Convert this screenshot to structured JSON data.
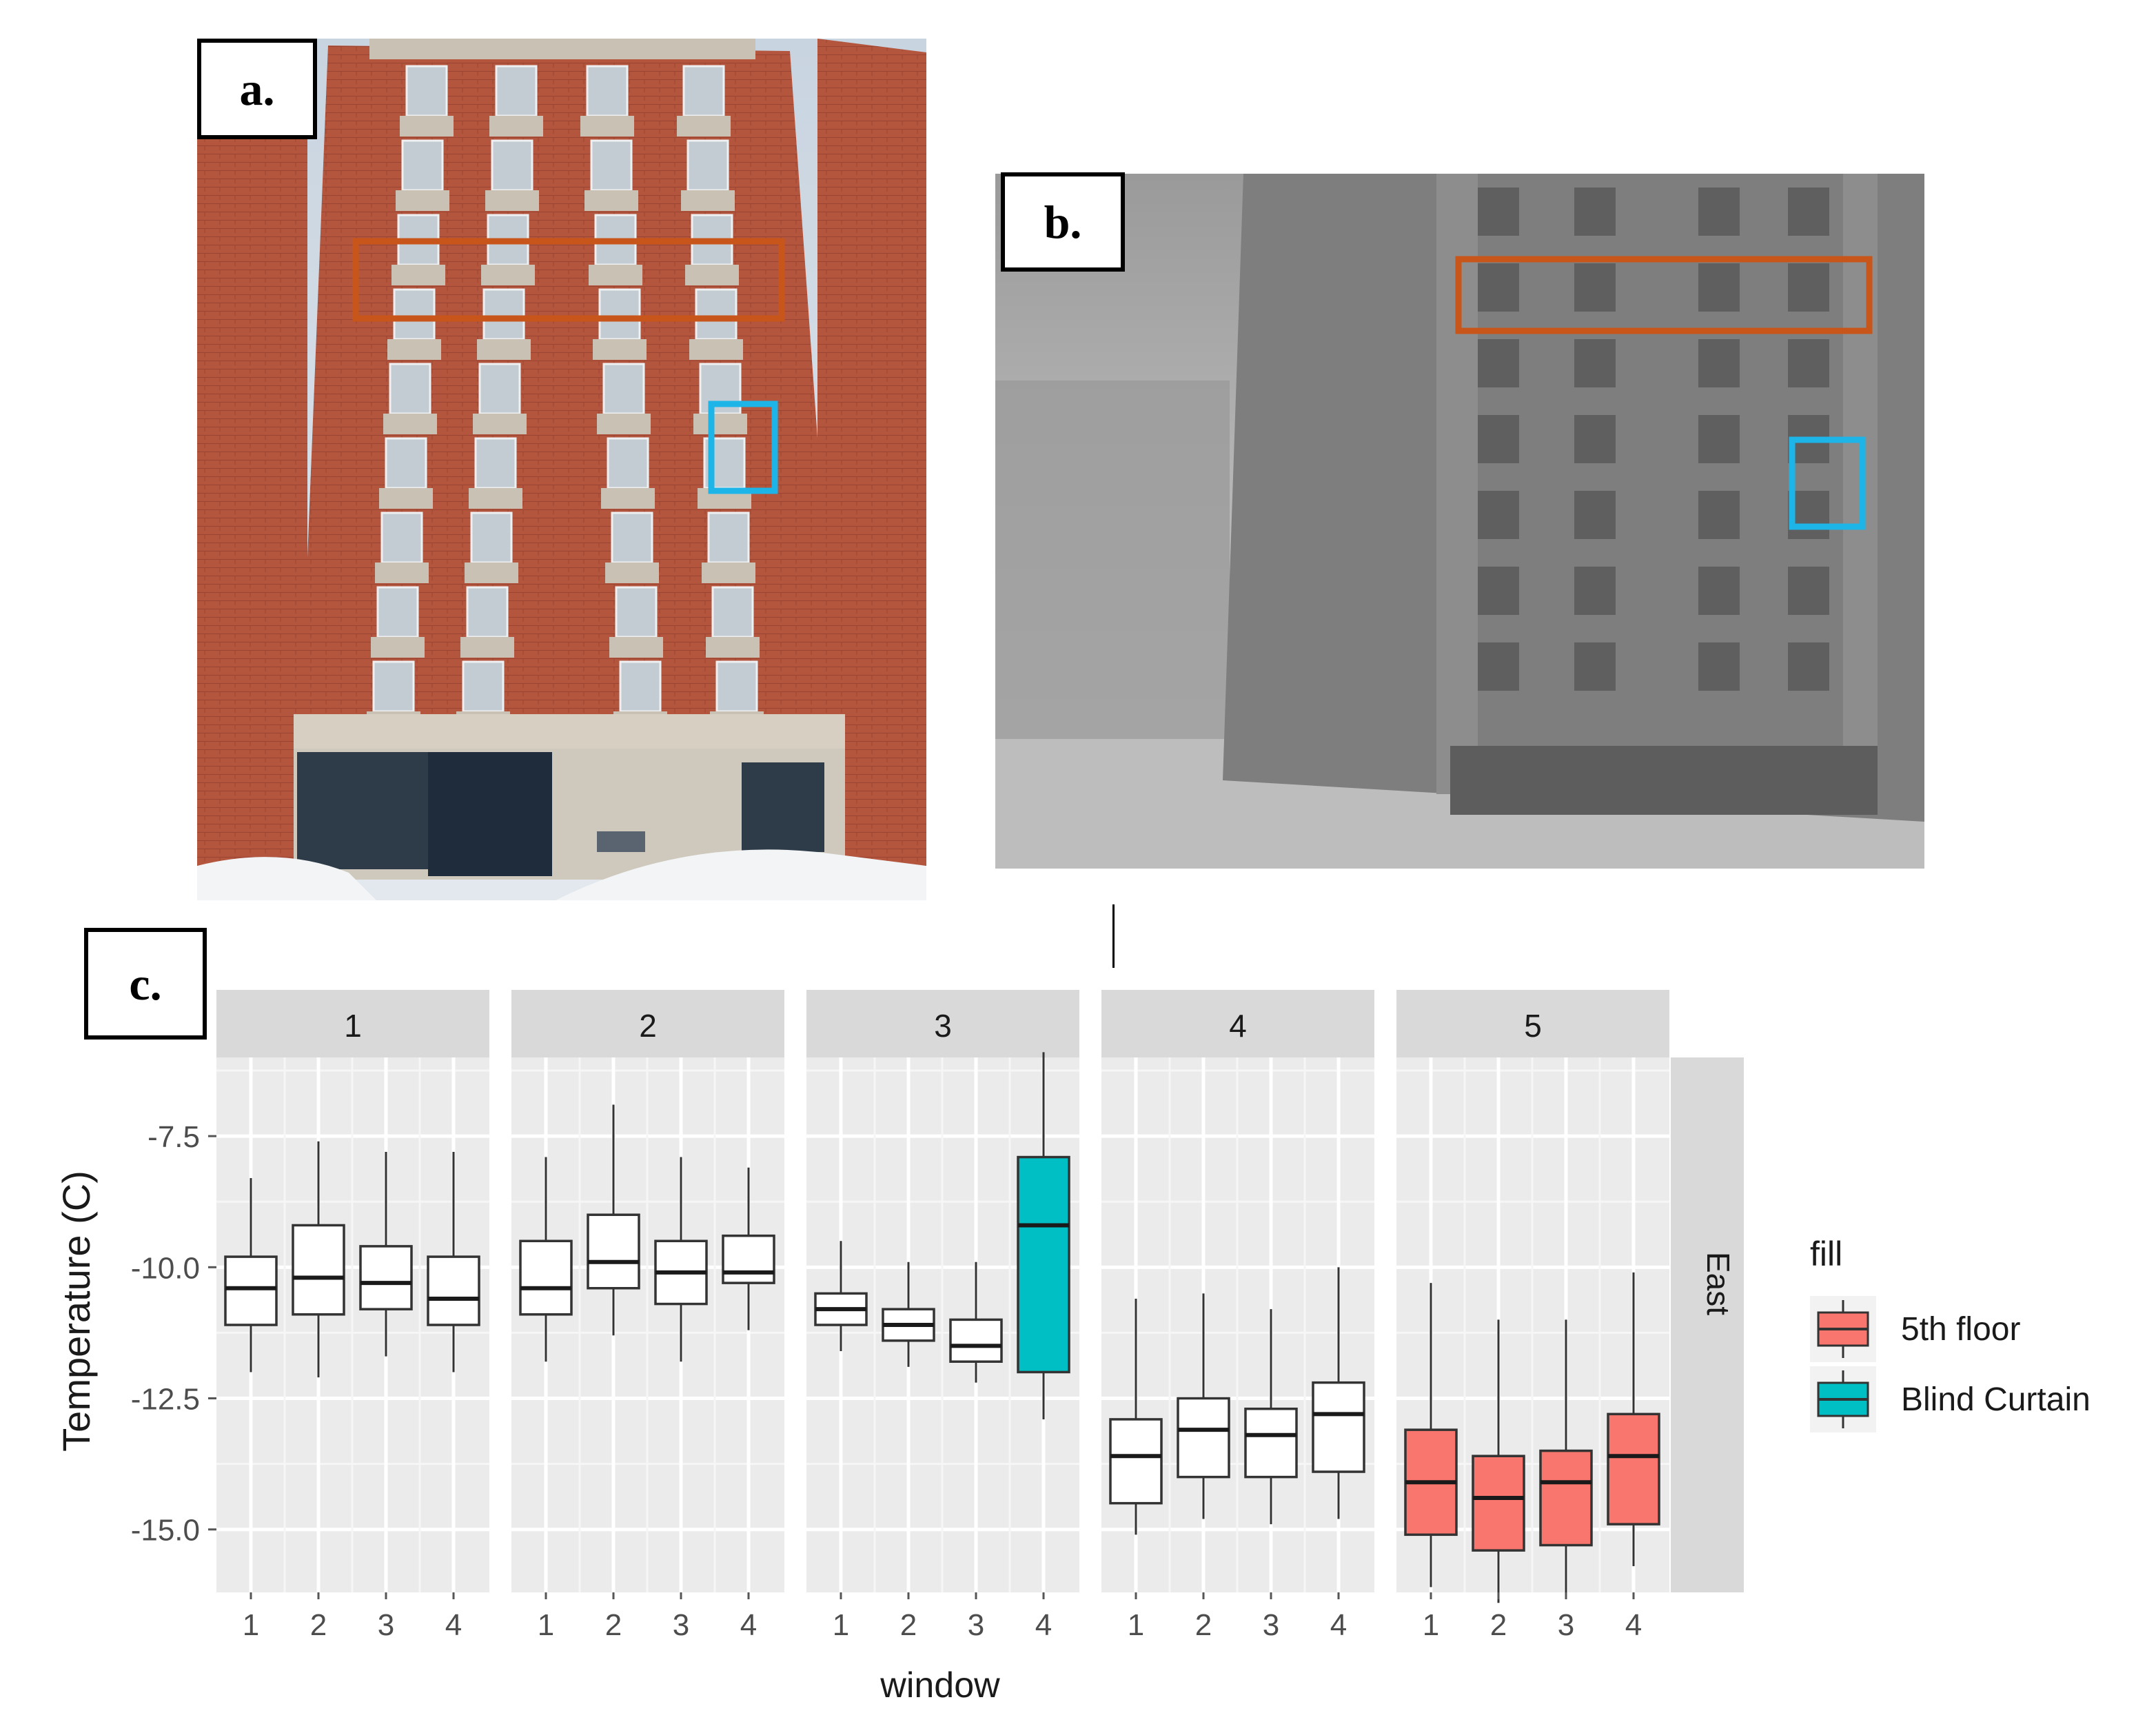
{
  "panels": {
    "a": {
      "label": "a."
    },
    "b": {
      "label": "b."
    },
    "c": {
      "label": "c."
    }
  },
  "colors": {
    "orange_box": "#c8561a",
    "blue_box": "#1db4e8",
    "fifth_floor": "#f8766d",
    "blind_curtain": "#00bfc4",
    "plain": "#ffffff",
    "panel_bg": "#ebebeb",
    "strip_bg": "#d9d9d9"
  },
  "chart_data": {
    "type": "boxplot",
    "xlabel": "window",
    "ylabel": "Temperature (C)",
    "ylim": [
      -16.2,
      -6.0
    ],
    "yticks": [
      -7.5,
      -10.0,
      -12.5,
      -15.0
    ],
    "facet_row_label": "East",
    "legend": {
      "title": "fill",
      "placement": "right",
      "entries": [
        {
          "name": "5th floor",
          "color": "#f8766d"
        },
        {
          "name": "Blind Curtain",
          "color": "#00bfc4"
        }
      ]
    },
    "facets": [
      {
        "label": "1",
        "windows": [
          {
            "x": "1",
            "min": -12.0,
            "q1": -11.1,
            "median": -10.4,
            "q3": -9.8,
            "max": -8.3,
            "fill": "plain"
          },
          {
            "x": "2",
            "min": -12.1,
            "q1": -10.9,
            "median": -10.2,
            "q3": -9.2,
            "max": -7.6,
            "fill": "plain"
          },
          {
            "x": "3",
            "min": -11.7,
            "q1": -10.8,
            "median": -10.3,
            "q3": -9.6,
            "max": -7.8,
            "fill": "plain"
          },
          {
            "x": "4",
            "min": -12.0,
            "q1": -11.1,
            "median": -10.6,
            "q3": -9.8,
            "max": -7.8,
            "fill": "plain"
          }
        ]
      },
      {
        "label": "2",
        "windows": [
          {
            "x": "1",
            "min": -11.8,
            "q1": -10.9,
            "median": -10.4,
            "q3": -9.5,
            "max": -7.9,
            "fill": "plain"
          },
          {
            "x": "2",
            "min": -11.3,
            "q1": -10.4,
            "median": -9.9,
            "q3": -9.0,
            "max": -6.9,
            "fill": "plain"
          },
          {
            "x": "3",
            "min": -11.8,
            "q1": -10.7,
            "median": -10.1,
            "q3": -9.5,
            "max": -7.9,
            "fill": "plain"
          },
          {
            "x": "4",
            "min": -11.2,
            "q1": -10.3,
            "median": -10.1,
            "q3": -9.4,
            "max": -8.1,
            "fill": "plain"
          }
        ]
      },
      {
        "label": "3",
        "windows": [
          {
            "x": "1",
            "min": -11.6,
            "q1": -11.1,
            "median": -10.8,
            "q3": -10.5,
            "max": -9.5,
            "fill": "plain"
          },
          {
            "x": "2",
            "min": -11.9,
            "q1": -11.4,
            "median": -11.1,
            "q3": -10.8,
            "max": -9.9,
            "fill": "plain"
          },
          {
            "x": "3",
            "min": -12.2,
            "q1": -11.8,
            "median": -11.5,
            "q3": -11.0,
            "max": -9.9,
            "fill": "plain"
          },
          {
            "x": "4",
            "min": -12.9,
            "q1": -12.0,
            "median": -9.2,
            "q3": -7.9,
            "max": -5.9,
            "fill": "blind_curtain"
          }
        ]
      },
      {
        "label": "4",
        "windows": [
          {
            "x": "1",
            "min": -15.1,
            "q1": -14.5,
            "median": -13.6,
            "q3": -12.9,
            "max": -10.6,
            "fill": "plain"
          },
          {
            "x": "2",
            "min": -14.8,
            "q1": -14.0,
            "median": -13.1,
            "q3": -12.5,
            "max": -10.5,
            "fill": "plain"
          },
          {
            "x": "3",
            "min": -14.9,
            "q1": -14.0,
            "median": -13.2,
            "q3": -12.7,
            "max": -10.8,
            "fill": "plain"
          },
          {
            "x": "4",
            "min": -14.8,
            "q1": -13.9,
            "median": -12.8,
            "q3": -12.2,
            "max": -10.0,
            "fill": "plain"
          }
        ]
      },
      {
        "label": "5",
        "windows": [
          {
            "x": "1",
            "min": -16.1,
            "q1": -15.1,
            "median": -14.1,
            "q3": -13.1,
            "max": -10.3,
            "fill": "fifth_floor"
          },
          {
            "x": "2",
            "min": -16.4,
            "q1": -15.4,
            "median": -14.4,
            "q3": -13.6,
            "max": -11.0,
            "fill": "fifth_floor"
          },
          {
            "x": "3",
            "min": -16.2,
            "q1": -15.3,
            "median": -14.1,
            "q3": -13.5,
            "max": -11.0,
            "fill": "fifth_floor"
          },
          {
            "x": "4",
            "min": -15.7,
            "q1": -14.9,
            "median": -13.6,
            "q3": -12.8,
            "max": -10.1,
            "fill": "fifth_floor"
          }
        ]
      }
    ]
  }
}
